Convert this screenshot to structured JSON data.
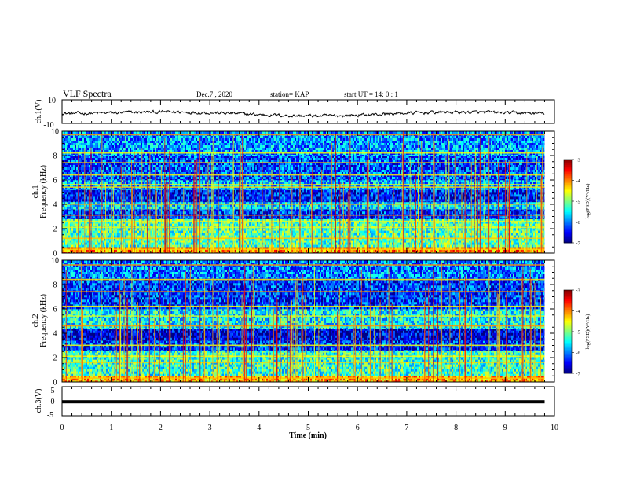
{
  "header": {
    "title": "VLF Spectra",
    "date": "Dec.7 , 2020",
    "station": "station= KAP",
    "start": "start UT =  14: 0 : 1"
  },
  "chart_data": [
    {
      "type": "line",
      "panel": "ch1-waveform",
      "ylabel": "ch.1(V)",
      "ylim": [
        -10,
        10
      ],
      "yticks": [
        "10",
        "-10"
      ],
      "xlim": [
        0,
        10
      ],
      "data_range_x": [
        0,
        9.8
      ],
      "description_values": {
        "y_min_approx": -4,
        "y_max_approx": 3
      }
    },
    {
      "type": "heatmap",
      "panel": "ch1-spectrogram",
      "ylabel": "ch.1\nFrequency (kHz)",
      "ylim": [
        0,
        10
      ],
      "yticks": [
        "0",
        "2",
        "4",
        "6",
        "8",
        "10"
      ],
      "xlim": [
        0,
        10
      ],
      "data_range_x": [
        0,
        9.8
      ],
      "colorbar": {
        "label": "log(PSD)(V²/Hz)",
        "range": [
          -7,
          -3
        ],
        "ticks": [
          "-3",
          "-4",
          "-5",
          "-6",
          "-7"
        ]
      },
      "bands_khz": [
        {
          "f0": 0.0,
          "f1": 0.5,
          "level": -4.0
        },
        {
          "f0": 0.5,
          "f1": 2.8,
          "level": -5.2
        },
        {
          "f0": 2.8,
          "f1": 3.6,
          "level": -6.3
        },
        {
          "f0": 3.6,
          "f1": 4.2,
          "level": -5.6
        },
        {
          "f0": 4.2,
          "f1": 5.2,
          "level": -6.4
        },
        {
          "f0": 5.2,
          "f1": 6.0,
          "level": -5.8
        },
        {
          "f0": 6.0,
          "f1": 8.0,
          "level": -6.2
        },
        {
          "f0": 8.0,
          "f1": 10.0,
          "level": -5.9
        }
      ],
      "lines_khz": [
        0.3,
        1.2,
        2.1,
        2.6,
        3.1,
        4.0,
        5.4,
        5.6,
        6.4,
        7.4,
        8.2,
        9.7
      ]
    },
    {
      "type": "heatmap",
      "panel": "ch2-spectrogram",
      "ylabel": "ch.2\nFrequency (kHz)",
      "ylim": [
        0,
        10
      ],
      "yticks": [
        "0",
        "2",
        "4",
        "6",
        "8",
        "10"
      ],
      "xlim": [
        0,
        10
      ],
      "data_range_x": [
        0,
        9.8
      ],
      "colorbar": {
        "label": "log(PSD)(V²/Hz)",
        "range": [
          -7,
          -3
        ],
        "ticks": [
          "-3",
          "-4",
          "-5",
          "-6",
          "-7"
        ]
      },
      "bands_khz": [
        {
          "f0": 0.0,
          "f1": 0.5,
          "level": -4.2
        },
        {
          "f0": 0.5,
          "f1": 2.6,
          "level": -5.3
        },
        {
          "f0": 2.6,
          "f1": 3.4,
          "level": -6.3
        },
        {
          "f0": 3.4,
          "f1": 4.4,
          "level": -6.6
        },
        {
          "f0": 4.4,
          "f1": 6.0,
          "level": -5.5
        },
        {
          "f0": 6.0,
          "f1": 8.5,
          "level": -6.3
        },
        {
          "f0": 8.5,
          "f1": 10.0,
          "level": -6.0
        }
      ],
      "lines_khz": [
        0.3,
        1.6,
        2.1,
        3.0,
        4.6,
        5.4,
        6.2,
        7.4,
        8.4,
        9.6
      ]
    },
    {
      "type": "line",
      "panel": "ch3-waveform",
      "ylabel": "ch.3(V)",
      "ylim": [
        -5,
        5
      ],
      "yticks": [
        "5",
        "0",
        "-5"
      ],
      "xlim": [
        0,
        10
      ],
      "xticks": [
        "0",
        "1",
        "2",
        "3",
        "4",
        "5",
        "6",
        "7",
        "8",
        "9",
        "10"
      ],
      "xlabel": "Time (min)",
      "data_range_x": [
        0,
        9.8
      ],
      "description_values": {
        "y_center": 0,
        "y_band": [
          -0.35,
          0.35
        ]
      }
    }
  ]
}
